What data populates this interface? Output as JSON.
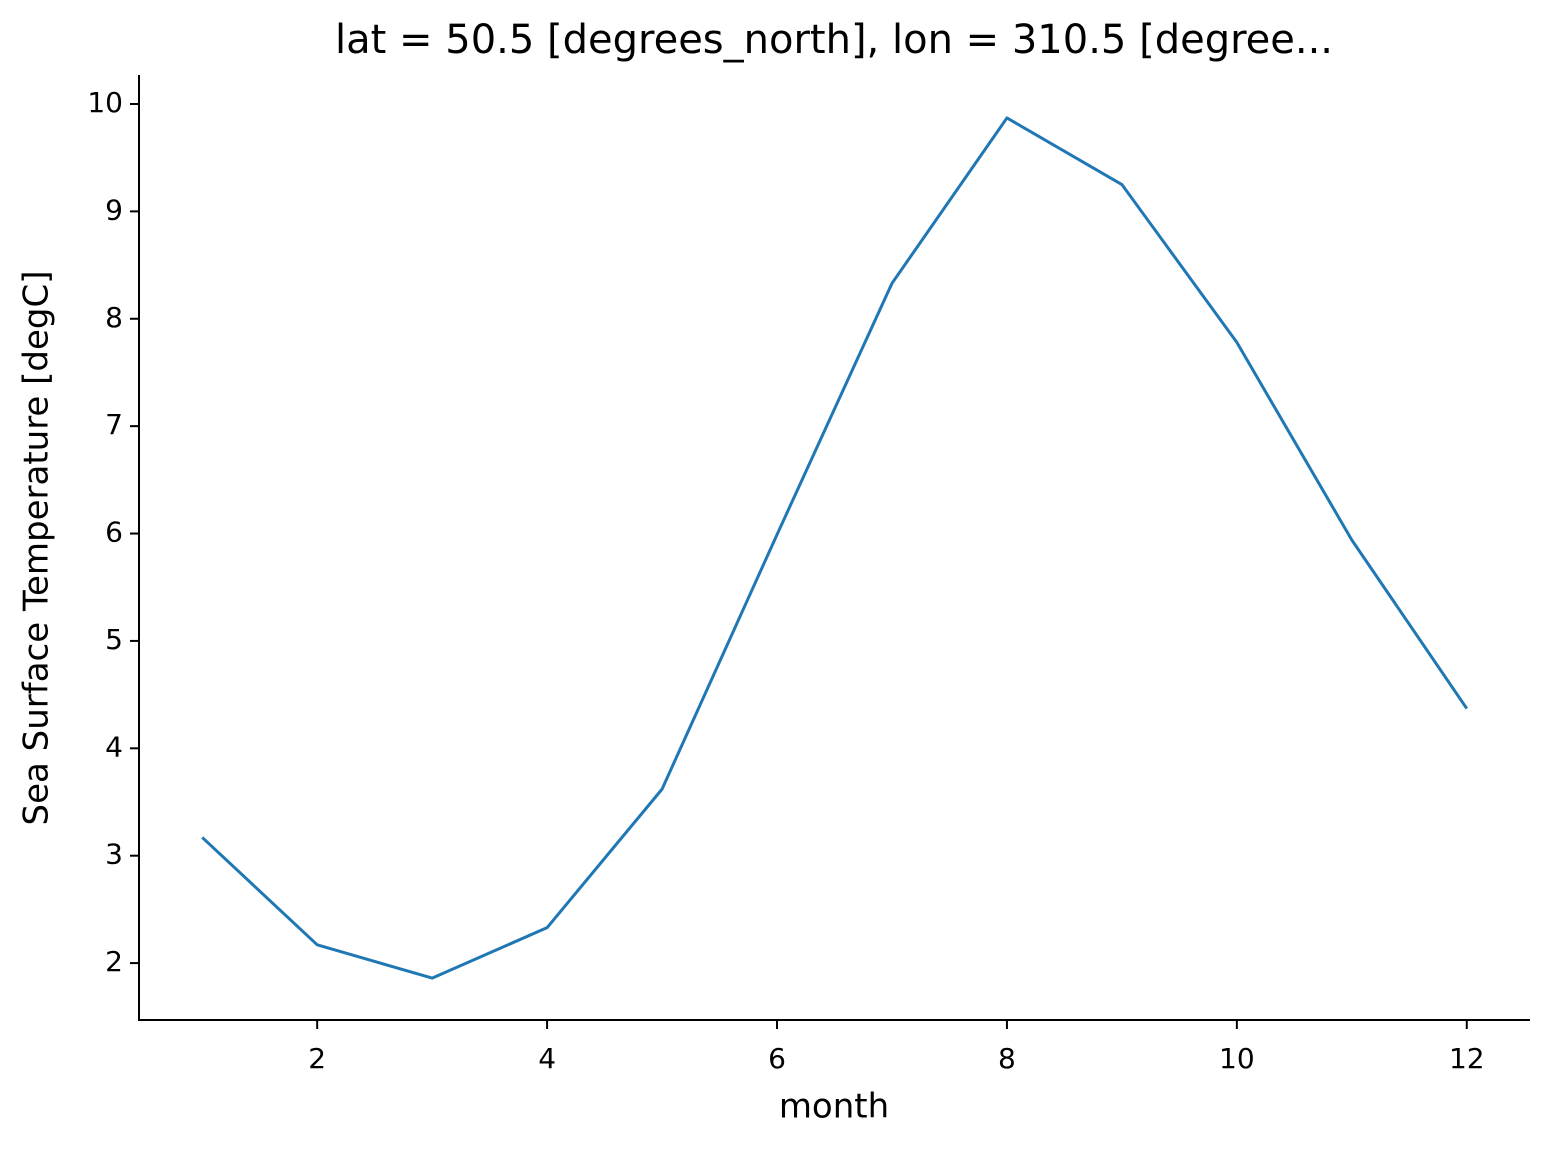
{
  "chart_data": {
    "type": "line",
    "title": "lat = 50.5 [degrees_north], lon = 310.5 [degree...",
    "x_label": "month",
    "y_label": "Sea Surface Temperature [degC]",
    "x": [
      1,
      2,
      3,
      4,
      5,
      6,
      7,
      8,
      9,
      10,
      11,
      12
    ],
    "series": [
      {
        "color": "#1f77b4",
        "values": [
          3.17,
          2.17,
          1.86,
          2.33,
          3.62,
          5.99,
          8.33,
          9.87,
          9.25,
          7.78,
          5.94,
          4.37
        ]
      }
    ],
    "xlim": [
      0.45,
      12.55
    ],
    "xticks": [
      2,
      4,
      6,
      8,
      10,
      12
    ],
    "ylim": [
      1.47,
      10.27
    ],
    "yticks": [
      2,
      3,
      4,
      5,
      6,
      7,
      8,
      9,
      10
    ],
    "grid": false
  }
}
